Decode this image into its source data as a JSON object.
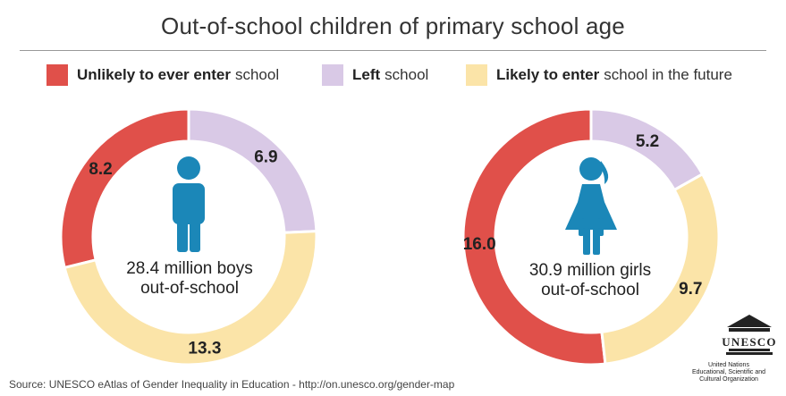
{
  "title": "Out-of-school children of primary school age",
  "legend": [
    {
      "bold": "Unlikely to ever enter",
      "rest": "school",
      "color": "#e0504a"
    },
    {
      "bold": "Left",
      "rest": "school",
      "color": "#d9c9e6"
    },
    {
      "bold": "Likely to enter",
      "rest": "school in the future",
      "color": "#fbe4a8"
    }
  ],
  "chart_data": [
    {
      "type": "pie",
      "title": "28.4 million boys out-of-school",
      "center_line1": "28.4 million boys",
      "center_line2": "out-of-school",
      "categories": [
        "Unlikely to ever enter school",
        "Left school",
        "Likely to enter school in the future"
      ],
      "values": [
        8.2,
        6.9,
        13.3
      ],
      "labels": [
        "8.2",
        "6.9",
        "13.3"
      ],
      "icon": "boy-icon"
    },
    {
      "type": "pie",
      "title": "30.9 million girls out-of-school",
      "center_line1": "30.9 million girls",
      "center_line2": "out-of-school",
      "categories": [
        "Unlikely to ever enter school",
        "Left school",
        "Likely to enter school in the future"
      ],
      "values": [
        16.0,
        5.2,
        9.7
      ],
      "labels": [
        "16.0",
        "5.2",
        "9.7"
      ],
      "icon": "girl-icon"
    }
  ],
  "colors": {
    "unlikely": "#e0504a",
    "left": "#d9c9e6",
    "likely": "#fbe4a8",
    "figure": "#1b87b8"
  },
  "source": "Source: UNESCO eAtlas of Gender Inequality in Education - http://on.unesco.org/gender-map",
  "logo": {
    "text": "UNESCO",
    "caption_line1": "United Nations",
    "caption_line2": "Educational, Scientific and",
    "caption_line3": "Cultural Organization"
  }
}
